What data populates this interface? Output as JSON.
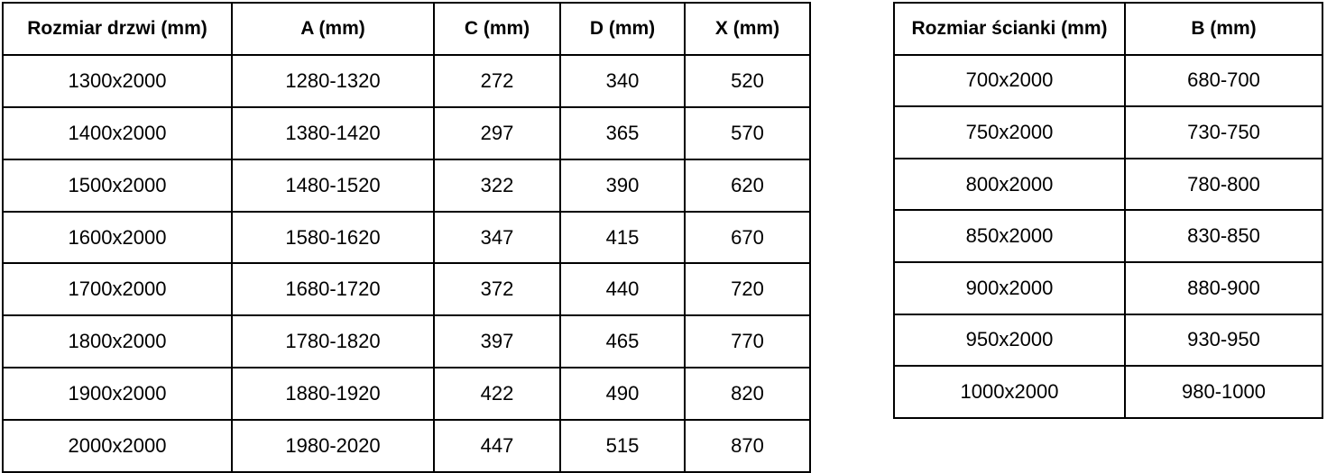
{
  "colors": {
    "border": "#000000",
    "background": "#ffffff",
    "text": "#000000"
  },
  "tables": {
    "doors": {
      "headers": [
        "Rozmiar drzwi (mm)",
        "A (mm)",
        "C (mm)",
        "D (mm)",
        "X (mm)"
      ],
      "rows": [
        [
          "1300x2000",
          "1280-1320",
          "272",
          "340",
          "520"
        ],
        [
          "1400x2000",
          "1380-1420",
          "297",
          "365",
          "570"
        ],
        [
          "1500x2000",
          "1480-1520",
          "322",
          "390",
          "620"
        ],
        [
          "1600x2000",
          "1580-1620",
          "347",
          "415",
          "670"
        ],
        [
          "1700x2000",
          "1680-1720",
          "372",
          "440",
          "720"
        ],
        [
          "1800x2000",
          "1780-1820",
          "397",
          "465",
          "770"
        ],
        [
          "1900x2000",
          "1880-1920",
          "422",
          "490",
          "820"
        ],
        [
          "2000x2000",
          "1980-2020",
          "447",
          "515",
          "870"
        ]
      ]
    },
    "walls": {
      "headers": [
        "Rozmiar ścianki (mm)",
        "B (mm)"
      ],
      "rows": [
        [
          "700x2000",
          "680-700"
        ],
        [
          "750x2000",
          "730-750"
        ],
        [
          "800x2000",
          "780-800"
        ],
        [
          "850x2000",
          "830-850"
        ],
        [
          "900x2000",
          "880-900"
        ],
        [
          "950x2000",
          "930-950"
        ],
        [
          "1000x2000",
          "980-1000"
        ]
      ]
    }
  }
}
